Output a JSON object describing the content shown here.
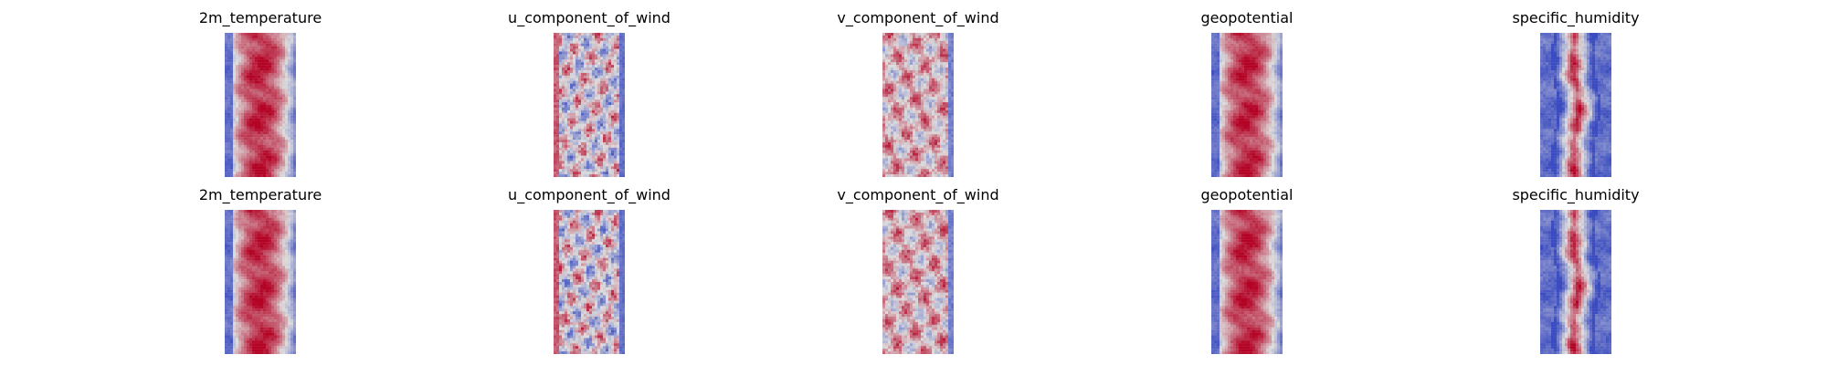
{
  "chart_data": {
    "type": "heatmap",
    "colormap": "coolwarm",
    "colormap_low": "#3b4cc0",
    "colormap_mid": "#dddddd",
    "colormap_high": "#b40426",
    "axes_visible": false,
    "rows": [
      {
        "panels": [
          {
            "title": "2m_temperature",
            "pattern": "warm-core"
          },
          {
            "title": "u_component_of_wind",
            "pattern": "turbulent"
          },
          {
            "title": "v_component_of_wind",
            "pattern": "turbulent-warm"
          },
          {
            "title": "geopotential",
            "pattern": "warm-core"
          },
          {
            "title": "specific_humidity",
            "pattern": "narrow-core"
          }
        ]
      },
      {
        "panels": [
          {
            "title": "2m_temperature",
            "pattern": "warm-core"
          },
          {
            "title": "u_component_of_wind",
            "pattern": "turbulent"
          },
          {
            "title": "v_component_of_wind",
            "pattern": "turbulent-warm"
          },
          {
            "title": "geopotential",
            "pattern": "warm-core"
          },
          {
            "title": "specific_humidity",
            "pattern": "narrow-core"
          }
        ]
      }
    ]
  }
}
